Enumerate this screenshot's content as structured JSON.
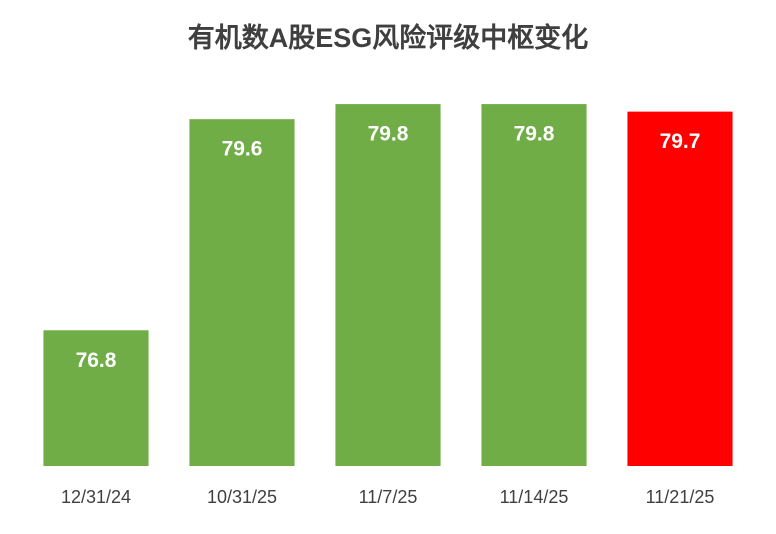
{
  "chart_data": {
    "type": "bar",
    "title": "有机数A股ESG风险评级中枢变化",
    "categories": [
      "12/31/24",
      "10/31/25",
      "11/7/25",
      "11/14/25",
      "11/21/25"
    ],
    "values": [
      76.8,
      79.6,
      79.8,
      79.8,
      79.7
    ],
    "colors": [
      "#70ad47",
      "#70ad47",
      "#70ad47",
      "#70ad47",
      "#ff0000"
    ],
    "ylim": [
      75,
      80
    ]
  }
}
